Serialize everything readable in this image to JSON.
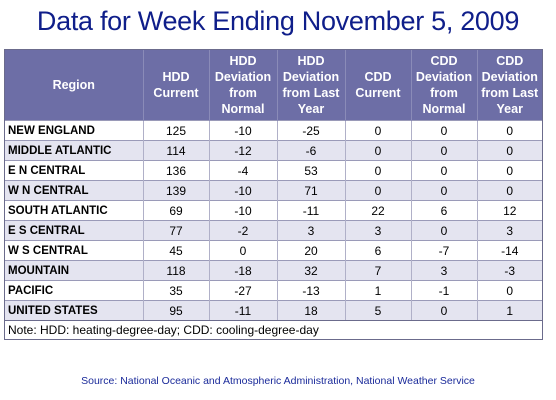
{
  "title": "Data for Week Ending November 5, 2009",
  "table": {
    "headers": [
      "Region",
      "HDD Current",
      "HDD Deviation from Normal",
      "HDD Deviation from Last Year",
      "CDD Current",
      "CDD Deviation from Normal",
      "CDD Deviation from Last Year"
    ],
    "rows": [
      [
        "NEW ENGLAND",
        "125",
        "-10",
        "-25",
        "0",
        "0",
        "0"
      ],
      [
        "MIDDLE ATLANTIC",
        "114",
        "-12",
        "-6",
        "0",
        "0",
        "0"
      ],
      [
        "E N CENTRAL",
        "136",
        "-4",
        "53",
        "0",
        "0",
        "0"
      ],
      [
        "W N CENTRAL",
        "139",
        "-10",
        "71",
        "0",
        "0",
        "0"
      ],
      [
        "SOUTH ATLANTIC",
        "69",
        "-10",
        "-11",
        "22",
        "6",
        "12"
      ],
      [
        "E S CENTRAL",
        "77",
        "-2",
        "3",
        "3",
        "0",
        "3"
      ],
      [
        "W S CENTRAL",
        "45",
        "0",
        "20",
        "6",
        "-7",
        "-14"
      ],
      [
        "MOUNTAIN",
        "118",
        "-18",
        "32",
        "7",
        "3",
        "-3"
      ],
      [
        "PACIFIC",
        "35",
        "-27",
        "-13",
        "1",
        "-1",
        "0"
      ],
      [
        "UNITED STATES",
        "95",
        "-11",
        "18",
        "5",
        "0",
        "1"
      ]
    ],
    "note": "Note: HDD: heating-degree-day; CDD: cooling-degree-day"
  },
  "source": "Source:  National Oceanic and Atmospheric Administration, National Weather Service",
  "colors": {
    "title": "#0f1e8a",
    "header_bg": "#6d6ea6",
    "stripe": "#e4e4f0",
    "source_text": "#1a2a9a"
  }
}
